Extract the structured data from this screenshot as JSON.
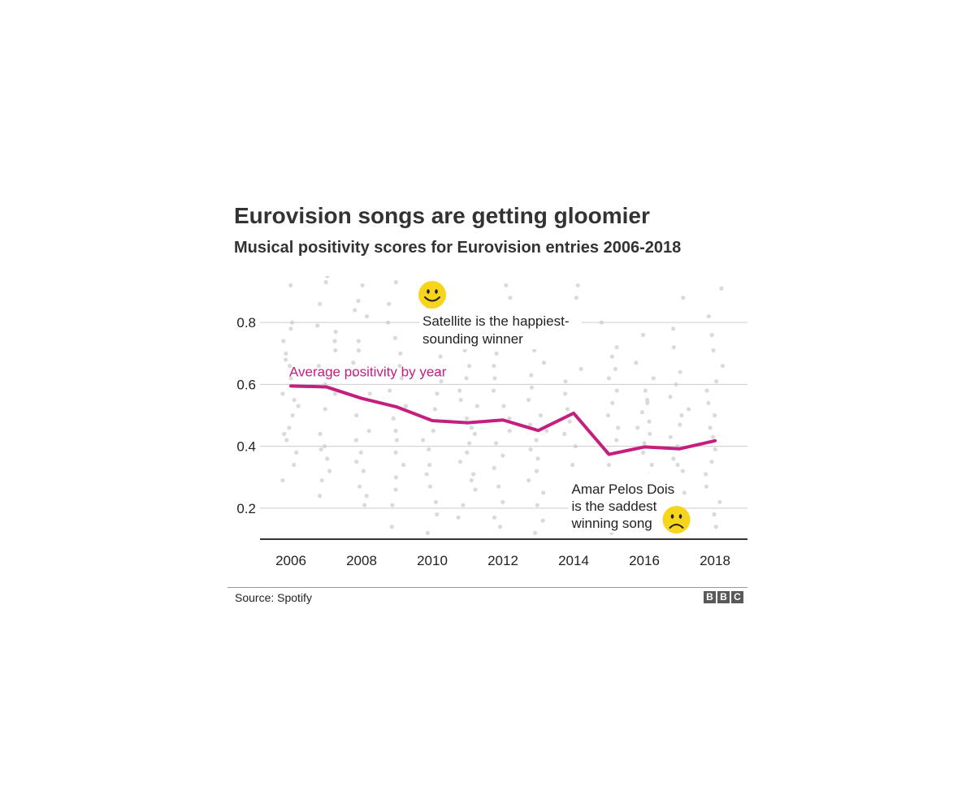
{
  "chart_data": {
    "type": "line",
    "title": "Eurovision songs are getting gloomier",
    "subtitle": "Musical positivity scores for Eurovision entries 2006-2018",
    "xlabel": "",
    "ylabel": "",
    "x_ticks": [
      "2006",
      "2008",
      "2010",
      "2012",
      "2014",
      "2016",
      "2018"
    ],
    "y_ticks": [
      "0.8",
      "0.6",
      "0.4",
      "0.2"
    ],
    "xlim": [
      2006,
      2018
    ],
    "ylim": [
      0.1,
      0.95
    ],
    "grid": true,
    "series": [
      {
        "name": "Average positivity by year",
        "color": "#c41e7f",
        "x": [
          2006,
          2007,
          2008,
          2009,
          2010,
          2011,
          2012,
          2013,
          2014,
          2015,
          2016,
          2017,
          2018
        ],
        "y": [
          0.595,
          0.592,
          0.555,
          0.527,
          0.483,
          0.476,
          0.485,
          0.451,
          0.507,
          0.374,
          0.398,
          0.392,
          0.418
        ]
      }
    ],
    "entries_scatter": {
      "color": "#d6d6d6",
      "points": [
        [
          2006,
          0.92
        ],
        [
          2006,
          0.8
        ],
        [
          2006,
          0.74
        ],
        [
          2006,
          0.7
        ],
        [
          2006,
          0.66
        ],
        [
          2006,
          0.62
        ],
        [
          2006,
          0.57
        ],
        [
          2006,
          0.53
        ],
        [
          2006,
          0.5
        ],
        [
          2006,
          0.46
        ],
        [
          2006,
          0.42
        ],
        [
          2006,
          0.38
        ],
        [
          2006,
          0.34
        ],
        [
          2006,
          0.29
        ],
        [
          2006,
          0.78
        ],
        [
          2006,
          0.68
        ],
        [
          2006,
          0.55
        ],
        [
          2006,
          0.44
        ],
        [
          2007,
          0.95
        ],
        [
          2007,
          0.93
        ],
        [
          2007,
          0.86
        ],
        [
          2007,
          0.79
        ],
        [
          2007,
          0.74
        ],
        [
          2007,
          0.71
        ],
        [
          2007,
          0.66
        ],
        [
          2007,
          0.6
        ],
        [
          2007,
          0.57
        ],
        [
          2007,
          0.44
        ],
        [
          2007,
          0.4
        ],
        [
          2007,
          0.36
        ],
        [
          2007,
          0.32
        ],
        [
          2007,
          0.29
        ],
        [
          2007,
          0.24
        ],
        [
          2007,
          0.77
        ],
        [
          2007,
          0.52
        ],
        [
          2007,
          0.39
        ],
        [
          2008,
          0.92
        ],
        [
          2008,
          0.87
        ],
        [
          2008,
          0.84
        ],
        [
          2008,
          0.82
        ],
        [
          2008,
          0.74
        ],
        [
          2008,
          0.71
        ],
        [
          2008,
          0.67
        ],
        [
          2008,
          0.57
        ],
        [
          2008,
          0.5
        ],
        [
          2008,
          0.45
        ],
        [
          2008,
          0.38
        ],
        [
          2008,
          0.35
        ],
        [
          2008,
          0.32
        ],
        [
          2008,
          0.27
        ],
        [
          2008,
          0.24
        ],
        [
          2008,
          0.21
        ],
        [
          2008,
          0.63
        ],
        [
          2008,
          0.42
        ],
        [
          2009,
          0.93
        ],
        [
          2009,
          0.86
        ],
        [
          2009,
          0.8
        ],
        [
          2009,
          0.75
        ],
        [
          2009,
          0.7
        ],
        [
          2009,
          0.66
        ],
        [
          2009,
          0.53
        ],
        [
          2009,
          0.49
        ],
        [
          2009,
          0.45
        ],
        [
          2009,
          0.42
        ],
        [
          2009,
          0.38
        ],
        [
          2009,
          0.34
        ],
        [
          2009,
          0.3
        ],
        [
          2009,
          0.26
        ],
        [
          2009,
          0.21
        ],
        [
          2009,
          0.14
        ],
        [
          2009,
          0.62
        ],
        [
          2009,
          0.58
        ],
        [
          2010,
          0.85
        ],
        [
          2010,
          0.8
        ],
        [
          2010,
          0.76
        ],
        [
          2010,
          0.72
        ],
        [
          2010,
          0.69
        ],
        [
          2010,
          0.64
        ],
        [
          2010,
          0.57
        ],
        [
          2010,
          0.52
        ],
        [
          2010,
          0.45
        ],
        [
          2010,
          0.42
        ],
        [
          2010,
          0.39
        ],
        [
          2010,
          0.34
        ],
        [
          2010,
          0.31
        ],
        [
          2010,
          0.27
        ],
        [
          2010,
          0.22
        ],
        [
          2010,
          0.18
        ],
        [
          2010,
          0.12
        ],
        [
          2010,
          0.61
        ],
        [
          2011,
          0.75
        ],
        [
          2011,
          0.71
        ],
        [
          2011,
          0.66
        ],
        [
          2011,
          0.62
        ],
        [
          2011,
          0.58
        ],
        [
          2011,
          0.53
        ],
        [
          2011,
          0.49
        ],
        [
          2011,
          0.44
        ],
        [
          2011,
          0.41
        ],
        [
          2011,
          0.38
        ],
        [
          2011,
          0.35
        ],
        [
          2011,
          0.31
        ],
        [
          2011,
          0.26
        ],
        [
          2011,
          0.21
        ],
        [
          2011,
          0.17
        ],
        [
          2011,
          0.55
        ],
        [
          2011,
          0.46
        ],
        [
          2011,
          0.29
        ],
        [
          2012,
          0.92
        ],
        [
          2012,
          0.88
        ],
        [
          2012,
          0.8
        ],
        [
          2012,
          0.74
        ],
        [
          2012,
          0.7
        ],
        [
          2012,
          0.66
        ],
        [
          2012,
          0.62
        ],
        [
          2012,
          0.58
        ],
        [
          2012,
          0.53
        ],
        [
          2012,
          0.49
        ],
        [
          2012,
          0.45
        ],
        [
          2012,
          0.41
        ],
        [
          2012,
          0.37
        ],
        [
          2012,
          0.33
        ],
        [
          2012,
          0.27
        ],
        [
          2012,
          0.22
        ],
        [
          2012,
          0.17
        ],
        [
          2012,
          0.14
        ],
        [
          2013,
          0.76
        ],
        [
          2013,
          0.71
        ],
        [
          2013,
          0.67
        ],
        [
          2013,
          0.63
        ],
        [
          2013,
          0.59
        ],
        [
          2013,
          0.55
        ],
        [
          2013,
          0.5
        ],
        [
          2013,
          0.47
        ],
        [
          2013,
          0.42
        ],
        [
          2013,
          0.39
        ],
        [
          2013,
          0.36
        ],
        [
          2013,
          0.32
        ],
        [
          2013,
          0.29
        ],
        [
          2013,
          0.25
        ],
        [
          2013,
          0.21
        ],
        [
          2013,
          0.16
        ],
        [
          2013,
          0.12
        ],
        [
          2013,
          0.45
        ],
        [
          2014,
          0.92
        ],
        [
          2014,
          0.88
        ],
        [
          2014,
          0.81
        ],
        [
          2014,
          0.75
        ],
        [
          2014,
          0.72
        ],
        [
          2014,
          0.65
        ],
        [
          2014,
          0.61
        ],
        [
          2014,
          0.57
        ],
        [
          2014,
          0.52
        ],
        [
          2014,
          0.48
        ],
        [
          2014,
          0.44
        ],
        [
          2014,
          0.4
        ],
        [
          2014,
          0.34
        ],
        [
          2014,
          0.3
        ],
        [
          2014,
          0.26
        ],
        [
          2014,
          0.22
        ],
        [
          2014,
          0.17
        ],
        [
          2014,
          0.13
        ],
        [
          2015,
          0.8
        ],
        [
          2015,
          0.72
        ],
        [
          2015,
          0.69
        ],
        [
          2015,
          0.62
        ],
        [
          2015,
          0.58
        ],
        [
          2015,
          0.54
        ],
        [
          2015,
          0.5
        ],
        [
          2015,
          0.46
        ],
        [
          2015,
          0.42
        ],
        [
          2015,
          0.38
        ],
        [
          2015,
          0.34
        ],
        [
          2015,
          0.3
        ],
        [
          2015,
          0.27
        ],
        [
          2015,
          0.23
        ],
        [
          2015,
          0.19
        ],
        [
          2015,
          0.15
        ],
        [
          2015,
          0.12
        ],
        [
          2015,
          0.65
        ],
        [
          2016,
          0.76
        ],
        [
          2016,
          0.67
        ],
        [
          2016,
          0.62
        ],
        [
          2016,
          0.58
        ],
        [
          2016,
          0.55
        ],
        [
          2016,
          0.51
        ],
        [
          2016,
          0.48
        ],
        [
          2016,
          0.44
        ],
        [
          2016,
          0.41
        ],
        [
          2016,
          0.38
        ],
        [
          2016,
          0.34
        ],
        [
          2016,
          0.31
        ],
        [
          2016,
          0.28
        ],
        [
          2016,
          0.25
        ],
        [
          2016,
          0.21
        ],
        [
          2016,
          0.16
        ],
        [
          2016,
          0.54
        ],
        [
          2016,
          0.46
        ],
        [
          2017,
          0.88
        ],
        [
          2017,
          0.78
        ],
        [
          2017,
          0.72
        ],
        [
          2017,
          0.64
        ],
        [
          2017,
          0.6
        ],
        [
          2017,
          0.56
        ],
        [
          2017,
          0.52
        ],
        [
          2017,
          0.47
        ],
        [
          2017,
          0.43
        ],
        [
          2017,
          0.4
        ],
        [
          2017,
          0.36
        ],
        [
          2017,
          0.32
        ],
        [
          2017,
          0.29
        ],
        [
          2017,
          0.25
        ],
        [
          2017,
          0.2
        ],
        [
          2017,
          0.16
        ],
        [
          2017,
          0.5
        ],
        [
          2017,
          0.34
        ],
        [
          2018,
          0.91
        ],
        [
          2018,
          0.82
        ],
        [
          2018,
          0.76
        ],
        [
          2018,
          0.71
        ],
        [
          2018,
          0.66
        ],
        [
          2018,
          0.61
        ],
        [
          2018,
          0.58
        ],
        [
          2018,
          0.54
        ],
        [
          2018,
          0.5
        ],
        [
          2018,
          0.46
        ],
        [
          2018,
          0.43
        ],
        [
          2018,
          0.39
        ],
        [
          2018,
          0.35
        ],
        [
          2018,
          0.31
        ],
        [
          2018,
          0.27
        ],
        [
          2018,
          0.22
        ],
        [
          2018,
          0.18
        ],
        [
          2018,
          0.14
        ]
      ]
    },
    "annotations": [
      {
        "id": "happiest",
        "lines": [
          "Satellite is the happiest-",
          "sounding winner"
        ],
        "x": 2010.0,
        "y": 0.9,
        "icon": "smiley-face-icon",
        "icon_x": 2010.0,
        "icon_y": 0.95
      },
      {
        "id": "saddest",
        "lines": [
          "Amar Pelos Dois",
          "is the saddest",
          "winning song"
        ],
        "x": 2017.0,
        "y": 0.13,
        "icon": "sad-face-icon",
        "icon_x": 2017.0,
        "icon_y": 0.17
      }
    ],
    "emoji_color": "#f7d51d"
  },
  "footer": {
    "source": "Source: Spotify",
    "logo_letters": [
      "B",
      "B",
      "C"
    ]
  }
}
